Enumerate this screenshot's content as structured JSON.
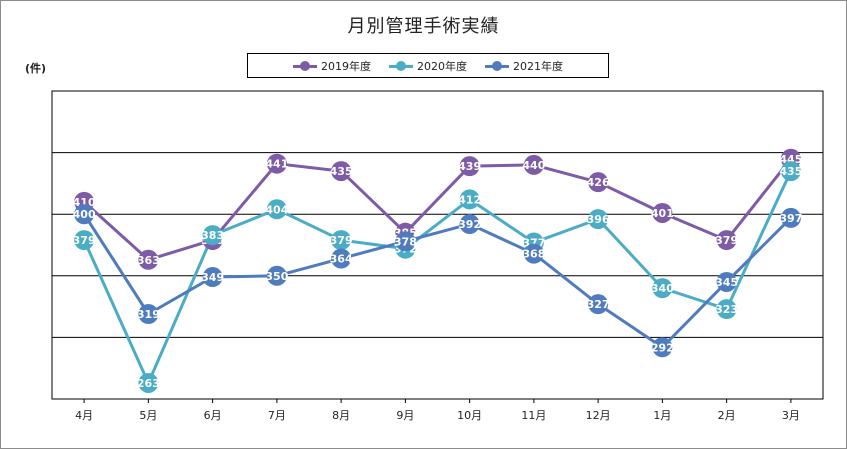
{
  "chart_data": {
    "type": "line",
    "title": "月別管理手術実績",
    "ylabel": "(件)",
    "xlabel": "",
    "categories": [
      "4月",
      "5月",
      "6月",
      "7月",
      "8月",
      "9月",
      "10月",
      "11月",
      "12月",
      "1月",
      "2月",
      "3月"
    ],
    "ylim": [
      250,
      500
    ],
    "grid": true,
    "legend_position": "top",
    "series": [
      {
        "name": "2019年度",
        "color": "#7d5ba6",
        "values": [
          410,
          363,
          379,
          441,
          435,
          385,
          439,
          440,
          426,
          401,
          379,
          445
        ]
      },
      {
        "name": "2020年度",
        "color": "#4bacc6",
        "values": [
          379,
          263,
          383,
          404,
          379,
          372,
          412,
          377,
          396,
          340,
          323,
          435
        ]
      },
      {
        "name": "2021年度",
        "color": "#4f7bbf",
        "values": [
          400,
          319,
          349,
          350,
          364,
          378,
          392,
          368,
          327,
          292,
          345,
          397
        ]
      }
    ]
  }
}
